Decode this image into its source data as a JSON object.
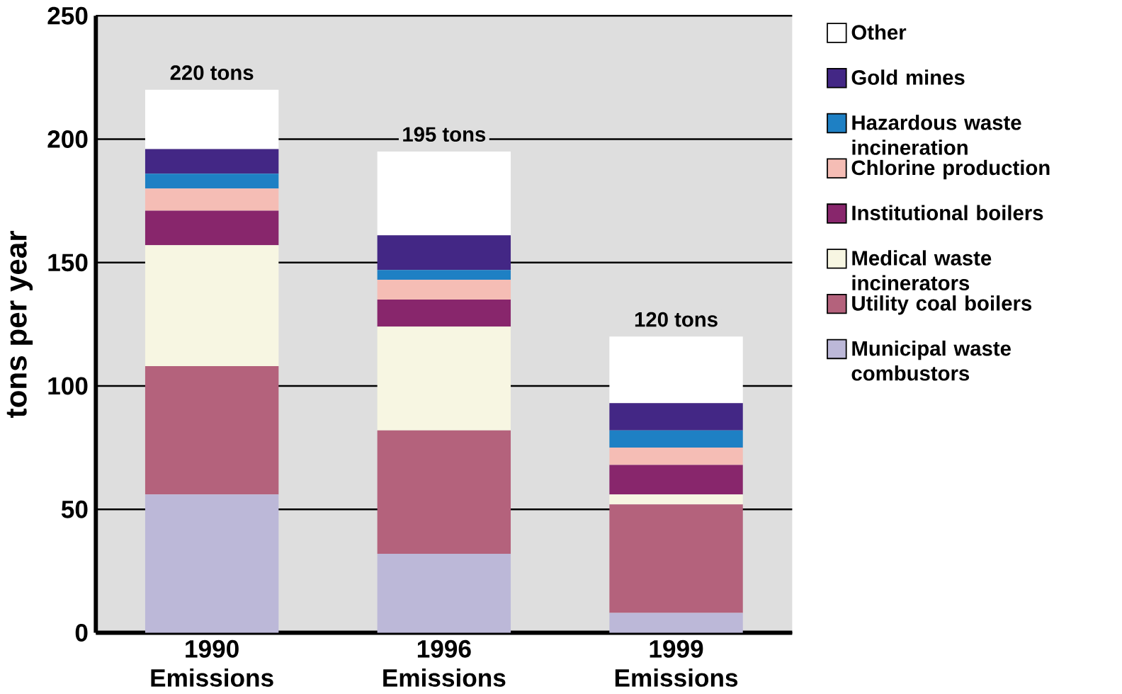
{
  "chart_data": {
    "type": "bar",
    "stacked": true,
    "ylabel": "tons per year",
    "categories": [
      "1990 Emissions",
      "1996 Emissions",
      "1999 Emissions"
    ],
    "series": [
      {
        "name": "Municipal waste combustors",
        "color": "#bcb8d8",
        "values": [
          56,
          32,
          8
        ]
      },
      {
        "name": "Utility coal boilers",
        "color": "#b4627c",
        "values": [
          52,
          50,
          44
        ]
      },
      {
        "name": "Medical waste incinerators",
        "color": "#f7f6e2",
        "values": [
          49,
          42,
          4
        ]
      },
      {
        "name": "Institutional boilers",
        "color": "#88266c",
        "values": [
          14,
          11,
          12
        ]
      },
      {
        "name": "Chlorine production",
        "color": "#f5bdb5",
        "values": [
          9,
          8,
          7
        ]
      },
      {
        "name": "Hazardous waste incineration",
        "color": "#1e80c4",
        "values": [
          6,
          4,
          7
        ]
      },
      {
        "name": "Gold mines",
        "color": "#432785",
        "values": [
          10,
          14,
          11
        ]
      },
      {
        "name": "Other",
        "color": "#ffffff",
        "values": [
          24,
          34,
          27
        ]
      }
    ],
    "totals": [
      "220 tons",
      "195 tons",
      "120 tons"
    ],
    "ylim": [
      0,
      250
    ],
    "yticks": [
      0,
      50,
      100,
      150,
      200,
      250
    ],
    "grid": "y",
    "legend": "right"
  }
}
